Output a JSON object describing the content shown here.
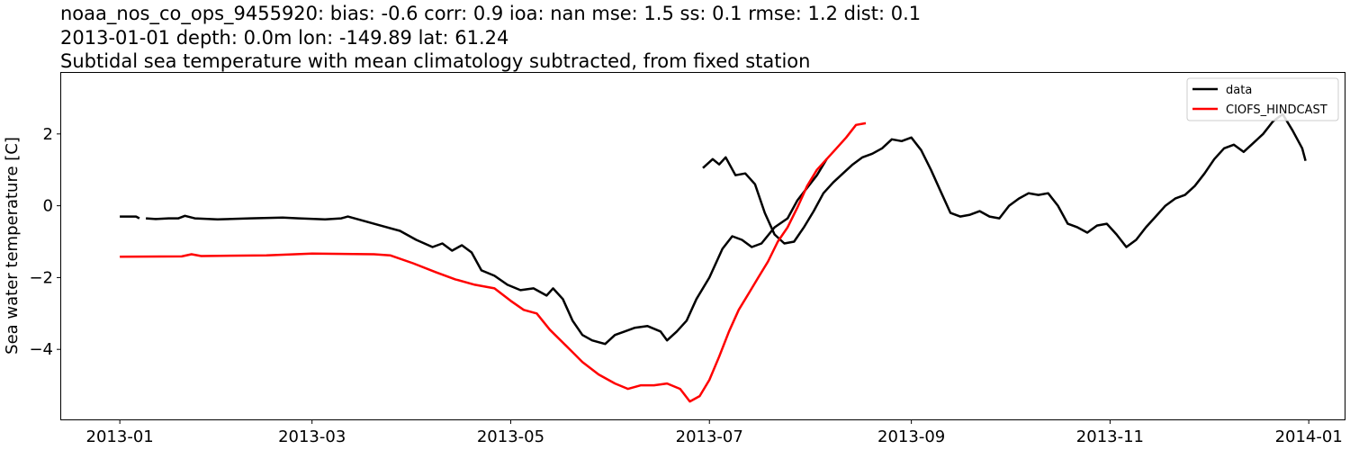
{
  "chart_data": {
    "type": "line",
    "title": [
      "noaa_nos_co_ops_9455920: bias: -0.6  corr: 0.9  ioa: nan  mse: 1.5  ss: 0.1  rmse: 1.2  dist: 0.1",
      "2013-01-01 depth: 0.0m lon: -149.89 lat: 61.24",
      "Subtidal sea temperature with mean climatology subtracted, from fixed station"
    ],
    "xlabel": "",
    "ylabel": "Sea water temperature [C]",
    "xlim": [
      "2012-12-14",
      "2014-01-12"
    ],
    "ylim": [
      -5.95,
      3.7
    ],
    "x_ticks": [
      "2013-01",
      "2013-03",
      "2013-05",
      "2013-07",
      "2013-09",
      "2013-11",
      "2014-01"
    ],
    "y_ticks": [
      -4,
      -2,
      0,
      2
    ],
    "y_tick_labels": [
      "−4",
      "−2",
      "0",
      "2"
    ],
    "grid": false,
    "legend_position": "upper right",
    "series": [
      {
        "name": "data",
        "color": "#000000",
        "segments": [
          [
            [
              "2013-01-01",
              -0.3
            ],
            [
              "2013-01-04",
              -0.3
            ],
            [
              "2013-01-06",
              -0.3
            ],
            [
              "2013-01-07",
              -0.35
            ]
          ],
          [
            [
              "2013-01-09",
              -0.35
            ],
            [
              "2013-01-12",
              -0.37
            ],
            [
              "2013-01-16",
              -0.35
            ],
            [
              "2013-01-19",
              -0.35
            ],
            [
              "2013-01-21",
              -0.28
            ],
            [
              "2013-01-24",
              -0.35
            ],
            [
              "2013-01-31",
              -0.38
            ],
            [
              "2013-02-10",
              -0.35
            ],
            [
              "2013-02-20",
              -0.33
            ],
            [
              "2013-02-25",
              -0.35
            ],
            [
              "2013-03-05",
              -0.38
            ],
            [
              "2013-03-10",
              -0.35
            ],
            [
              "2013-03-12",
              -0.3
            ],
            [
              "2013-03-16",
              -0.4
            ],
            [
              "2013-03-22",
              -0.55
            ],
            [
              "2013-03-28",
              -0.7
            ],
            [
              "2013-04-02",
              -0.95
            ],
            [
              "2013-04-07",
              -1.15
            ],
            [
              "2013-04-10",
              -1.05
            ],
            [
              "2013-04-13",
              -1.25
            ],
            [
              "2013-04-16",
              -1.1
            ],
            [
              "2013-04-19",
              -1.3
            ],
            [
              "2013-04-22",
              -1.8
            ],
            [
              "2013-04-26",
              -1.95
            ],
            [
              "2013-04-30",
              -2.2
            ],
            [
              "2013-05-04",
              -2.35
            ],
            [
              "2013-05-08",
              -2.3
            ],
            [
              "2013-05-12",
              -2.5
            ],
            [
              "2013-05-14",
              -2.3
            ],
            [
              "2013-05-17",
              -2.6
            ],
            [
              "2013-05-20",
              -3.2
            ],
            [
              "2013-05-23",
              -3.6
            ],
            [
              "2013-05-26",
              -3.75
            ],
            [
              "2013-05-30",
              -3.85
            ],
            [
              "2013-06-02",
              -3.6
            ],
            [
              "2013-06-05",
              -3.5
            ],
            [
              "2013-06-08",
              -3.4
            ],
            [
              "2013-06-12",
              -3.35
            ],
            [
              "2013-06-16",
              -3.5
            ],
            [
              "2013-06-18",
              -3.75
            ],
            [
              "2013-06-21",
              -3.5
            ],
            [
              "2013-06-24",
              -3.2
            ],
            [
              "2013-06-27",
              -2.6
            ],
            [
              "2013-07-01",
              -2.0
            ],
            [
              "2013-07-05",
              -1.2
            ],
            [
              "2013-07-08",
              -0.85
            ],
            [
              "2013-07-11",
              -0.95
            ],
            [
              "2013-07-14",
              -1.15
            ],
            [
              "2013-07-17",
              -1.05
            ],
            [
              "2013-07-21",
              -0.6
            ],
            [
              "2013-07-25",
              -0.35
            ],
            [
              "2013-07-28",
              0.15
            ],
            [
              "2013-07-31",
              0.5
            ],
            [
              "2013-08-03",
              0.85
            ],
            [
              "2013-08-06",
              1.3
            ]
          ],
          [
            [
              "2013-06-29",
              1.05
            ],
            [
              "2013-07-02",
              1.3
            ],
            [
              "2013-07-04",
              1.15
            ],
            [
              "2013-07-06",
              1.35
            ],
            [
              "2013-07-09",
              0.85
            ],
            [
              "2013-07-12",
              0.9
            ],
            [
              "2013-07-15",
              0.6
            ],
            [
              "2013-07-18",
              -0.2
            ],
            [
              "2013-07-21",
              -0.8
            ],
            [
              "2013-07-24",
              -1.05
            ],
            [
              "2013-07-27",
              -1.0
            ],
            [
              "2013-07-30",
              -0.6
            ],
            [
              "2013-08-02",
              -0.15
            ],
            [
              "2013-08-05",
              0.35
            ],
            [
              "2013-08-08",
              0.65
            ],
            [
              "2013-08-11",
              0.9
            ],
            [
              "2013-08-14",
              1.15
            ],
            [
              "2013-08-17",
              1.35
            ],
            [
              "2013-08-20",
              1.45
            ],
            [
              "2013-08-23",
              1.6
            ],
            [
              "2013-08-26",
              1.85
            ],
            [
              "2013-08-29",
              1.8
            ],
            [
              "2013-09-01",
              1.9
            ],
            [
              "2013-09-04",
              1.55
            ],
            [
              "2013-09-07",
              1.0
            ],
            [
              "2013-09-10",
              0.4
            ],
            [
              "2013-09-13",
              -0.2
            ],
            [
              "2013-09-16",
              -0.3
            ],
            [
              "2013-09-19",
              -0.25
            ],
            [
              "2013-09-22",
              -0.15
            ],
            [
              "2013-09-25",
              -0.3
            ],
            [
              "2013-09-28",
              -0.35
            ],
            [
              "2013-10-01",
              0.0
            ],
            [
              "2013-10-04",
              0.2
            ],
            [
              "2013-10-07",
              0.35
            ],
            [
              "2013-10-10",
              0.3
            ],
            [
              "2013-10-13",
              0.35
            ],
            [
              "2013-10-16",
              0.0
            ],
            [
              "2013-10-19",
              -0.5
            ],
            [
              "2013-10-22",
              -0.6
            ],
            [
              "2013-10-25",
              -0.75
            ],
            [
              "2013-10-28",
              -0.55
            ],
            [
              "2013-10-31",
              -0.5
            ],
            [
              "2013-11-03",
              -0.8
            ],
            [
              "2013-11-06",
              -1.15
            ],
            [
              "2013-11-09",
              -0.95
            ],
            [
              "2013-11-12",
              -0.6
            ],
            [
              "2013-11-15",
              -0.3
            ],
            [
              "2013-11-18",
              0.0
            ],
            [
              "2013-11-21",
              0.2
            ],
            [
              "2013-11-24",
              0.3
            ],
            [
              "2013-11-27",
              0.55
            ],
            [
              "2013-11-30",
              0.9
            ],
            [
              "2013-12-03",
              1.3
            ],
            [
              "2013-12-06",
              1.6
            ],
            [
              "2013-12-09",
              1.7
            ],
            [
              "2013-12-12",
              1.5
            ],
            [
              "2013-12-15",
              1.75
            ],
            [
              "2013-12-18",
              2.0
            ],
            [
              "2013-12-21",
              2.35
            ],
            [
              "2013-12-24",
              2.55
            ],
            [
              "2013-12-27",
              2.1
            ],
            [
              "2013-12-30",
              1.6
            ],
            [
              "2013-12-31",
              1.25
            ]
          ]
        ]
      },
      {
        "name": "CIOFS_HINDCAST",
        "color": "#ff0000",
        "segments": [
          [
            [
              "2013-01-01",
              -1.42
            ],
            [
              "2013-01-20",
              -1.41
            ],
            [
              "2013-01-23",
              -1.35
            ],
            [
              "2013-01-26",
              -1.4
            ],
            [
              "2013-02-15",
              -1.38
            ],
            [
              "2013-03-01",
              -1.33
            ],
            [
              "2013-03-20",
              -1.35
            ],
            [
              "2013-03-25",
              -1.38
            ],
            [
              "2013-04-01",
              -1.6
            ],
            [
              "2013-04-08",
              -1.85
            ],
            [
              "2013-04-14",
              -2.05
            ],
            [
              "2013-04-20",
              -2.2
            ],
            [
              "2013-04-26",
              -2.3
            ],
            [
              "2013-05-01",
              -2.65
            ],
            [
              "2013-05-05",
              -2.9
            ],
            [
              "2013-05-09",
              -3.0
            ],
            [
              "2013-05-13",
              -3.45
            ],
            [
              "2013-05-18",
              -3.9
            ],
            [
              "2013-05-23",
              -4.35
            ],
            [
              "2013-05-28",
              -4.7
            ],
            [
              "2013-06-02",
              -4.95
            ],
            [
              "2013-06-06",
              -5.1
            ],
            [
              "2013-06-10",
              -5.0
            ],
            [
              "2013-06-14",
              -5.0
            ],
            [
              "2013-06-18",
              -4.95
            ],
            [
              "2013-06-22",
              -5.1
            ],
            [
              "2013-06-25",
              -5.45
            ],
            [
              "2013-06-28",
              -5.3
            ],
            [
              "2013-07-01",
              -4.85
            ],
            [
              "2013-07-04",
              -4.2
            ],
            [
              "2013-07-07",
              -3.5
            ],
            [
              "2013-07-10",
              -2.9
            ],
            [
              "2013-07-13",
              -2.45
            ],
            [
              "2013-07-16",
              -2.0
            ],
            [
              "2013-07-19",
              -1.55
            ],
            [
              "2013-07-22",
              -1.0
            ],
            [
              "2013-07-25",
              -0.6
            ],
            [
              "2013-07-28",
              -0.05
            ],
            [
              "2013-07-31",
              0.55
            ],
            [
              "2013-08-03",
              1.0
            ],
            [
              "2013-08-06",
              1.3
            ],
            [
              "2013-08-09",
              1.6
            ],
            [
              "2013-08-12",
              1.9
            ],
            [
              "2013-08-15",
              2.25
            ],
            [
              "2013-08-18",
              2.3
            ]
          ]
        ]
      }
    ]
  }
}
